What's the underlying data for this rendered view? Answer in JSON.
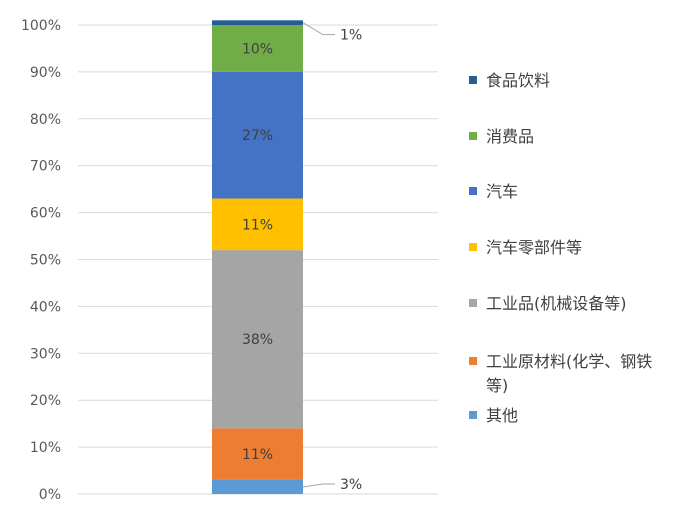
{
  "chart_data": {
    "type": "bar",
    "stacked": true,
    "percent_stacked": true,
    "categories": [
      ""
    ],
    "ylim": [
      0,
      100
    ],
    "y_ticks": [
      "0%",
      "10%",
      "20%",
      "30%",
      "40%",
      "50%",
      "60%",
      "70%",
      "80%",
      "90%",
      "100%"
    ],
    "grid": true,
    "legend_position": "right",
    "series": [
      {
        "name": "其他",
        "values": [
          3
        ],
        "label": "3%",
        "color": "#5B9BD5"
      },
      {
        "name": "工业原材料(化学、钢铁等)",
        "values": [
          11
        ],
        "label": "11%",
        "color": "#ED7D31"
      },
      {
        "name": "工业品(机械设备等)",
        "values": [
          38
        ],
        "label": "38%",
        "color": "#A5A5A5"
      },
      {
        "name": "汽车零部件等",
        "values": [
          11
        ],
        "label": "11%",
        "color": "#FFC000"
      },
      {
        "name": "汽车",
        "values": [
          27
        ],
        "label": "27%",
        "color": "#4472C4"
      },
      {
        "name": "消费品",
        "values": [
          10
        ],
        "label": "10%",
        "color": "#70AD47"
      },
      {
        "name": "食品饮料",
        "values": [
          1
        ],
        "label": "1%",
        "color": "#255E91"
      }
    ],
    "legend_order": [
      {
        "name": "食品饮料",
        "lines": [
          "食品饮料"
        ],
        "color": "#255E91"
      },
      {
        "name": "消费品",
        "lines": [
          "消费品"
        ],
        "color": "#70AD47"
      },
      {
        "name": "汽车",
        "lines": [
          "汽车"
        ],
        "color": "#4472C4"
      },
      {
        "name": "汽车零部件等",
        "lines": [
          "汽车零部件等"
        ],
        "color": "#FFC000"
      },
      {
        "name": "工业品(机械设备等)",
        "lines": [
          "工业品(机械设备等)"
        ],
        "color": "#A5A5A5"
      },
      {
        "name": "工业原材料(化学、钢铁等)",
        "lines": [
          "工业原材料(化学、钢铁",
          "等)"
        ],
        "color": "#ED7D31"
      },
      {
        "name": "其他",
        "lines": [
          "其他"
        ],
        "color": "#5B9BD5"
      }
    ]
  }
}
